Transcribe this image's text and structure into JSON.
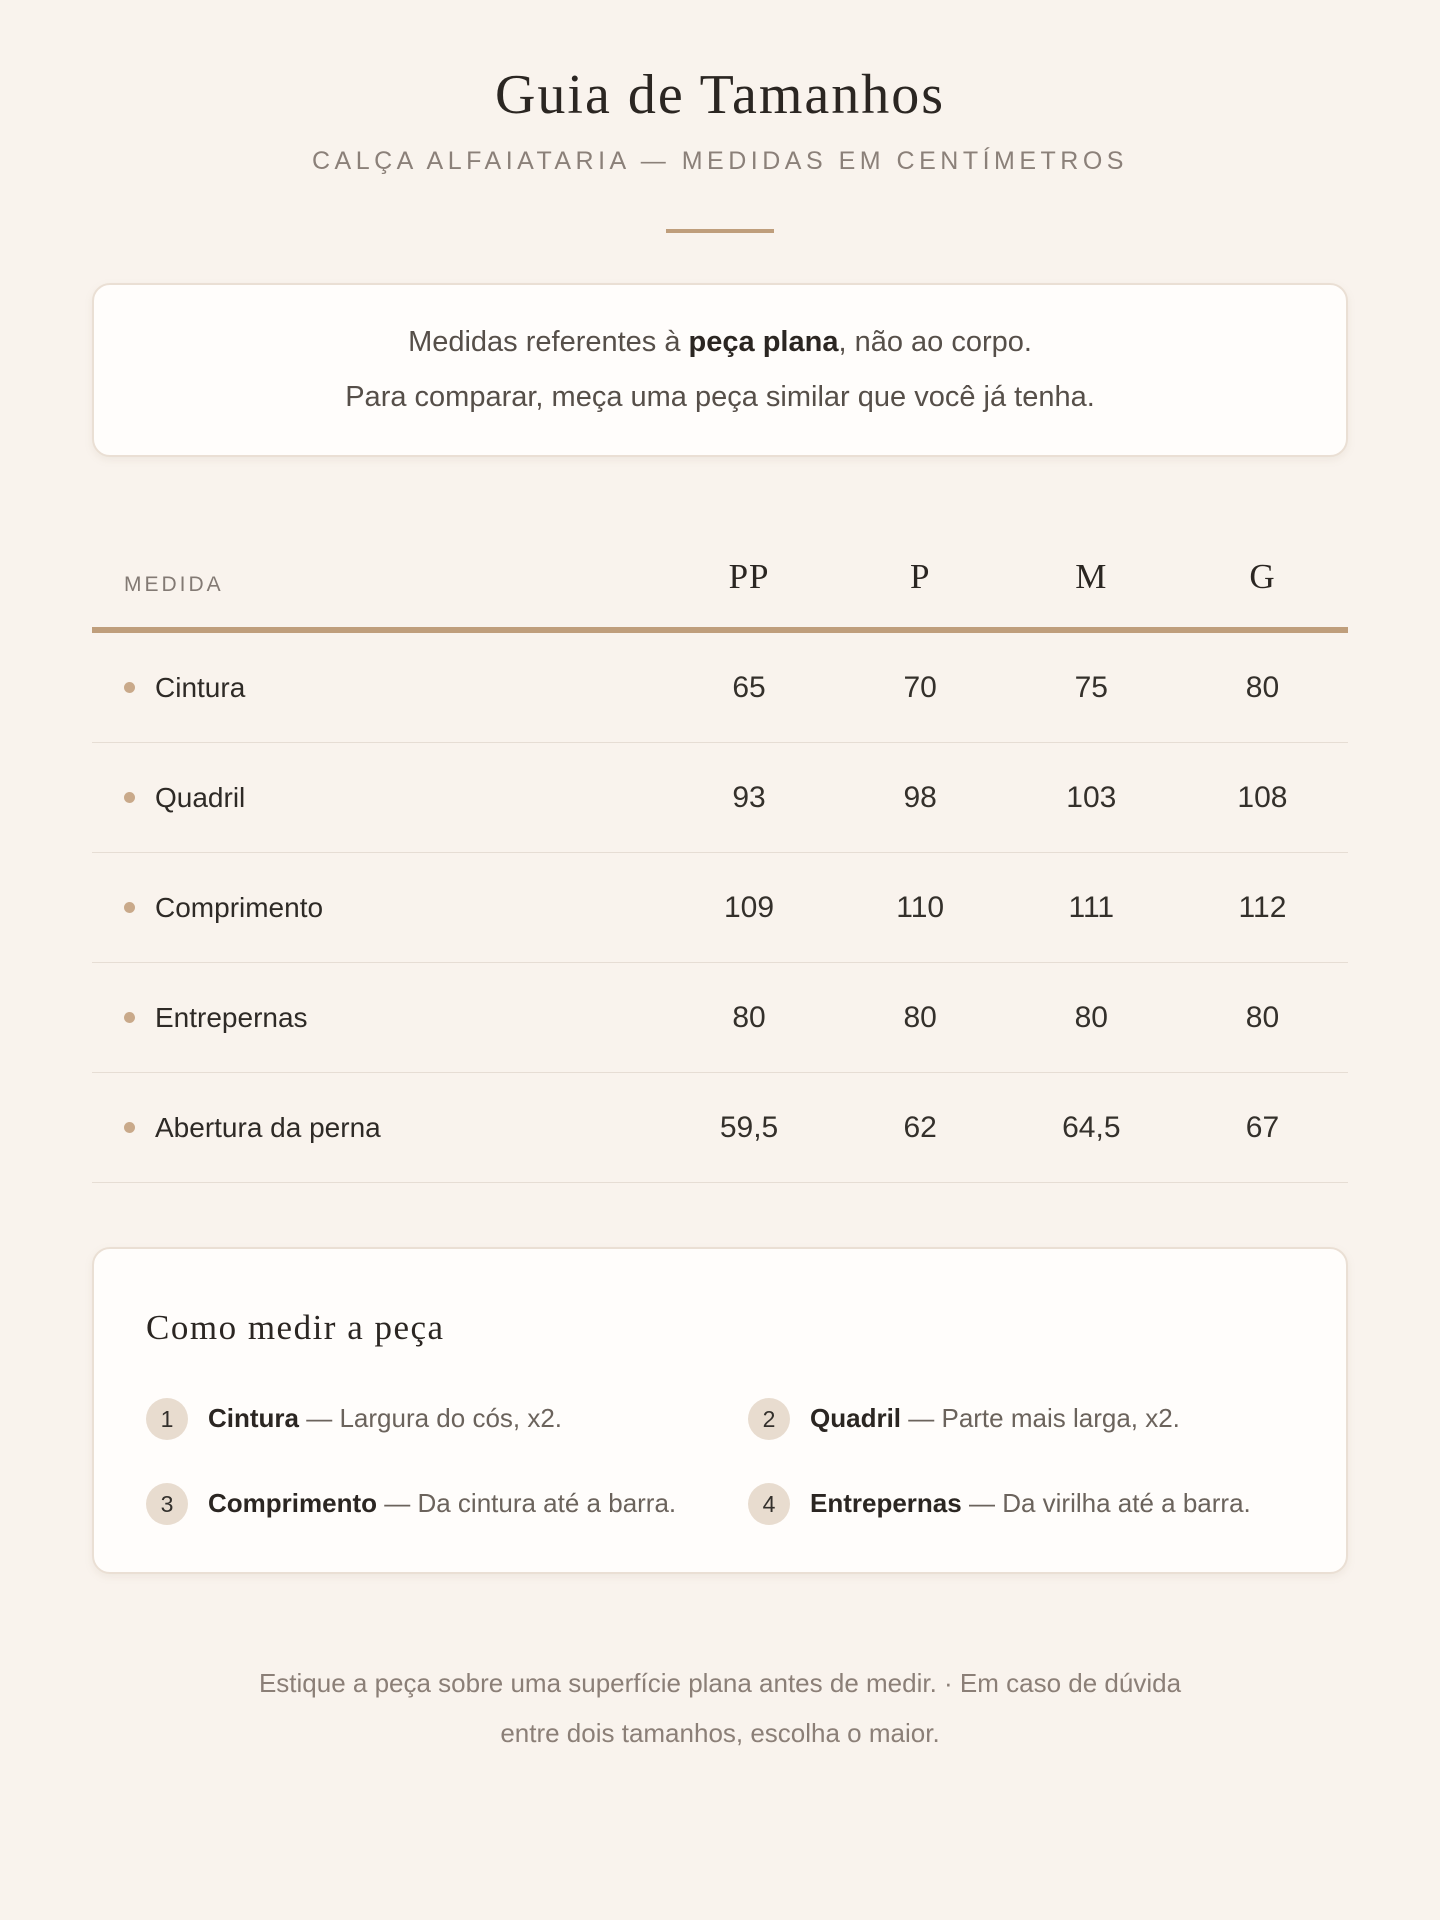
{
  "page": {
    "title": "Guia de Tamanhos",
    "subtitle": "CALÇA ALFAIATARIA — MEDIDAS EM CENTÍMETROS"
  },
  "notice": {
    "line1_prefix": "Medidas referentes à ",
    "line1_bold": "peça plana",
    "line1_suffix": ", não ao corpo.",
    "line2": "Para comparar, meça uma peça similar que você já tenha."
  },
  "table": {
    "label_header": "MEDIDA",
    "size_headers": [
      "PP",
      "P",
      "M",
      "G"
    ],
    "rows": [
      {
        "label": "Cintura",
        "values": [
          "65",
          "70",
          "75",
          "80"
        ]
      },
      {
        "label": "Quadril",
        "values": [
          "93",
          "98",
          "103",
          "108"
        ]
      },
      {
        "label": "Comprimento",
        "values": [
          "109",
          "110",
          "111",
          "112"
        ]
      },
      {
        "label": "Entrepernas",
        "values": [
          "80",
          "80",
          "80",
          "80"
        ]
      },
      {
        "label": "Abertura da perna",
        "values": [
          "59,5",
          "62",
          "64,5",
          "67"
        ]
      }
    ]
  },
  "how_to": {
    "title": "Como medir a peça",
    "items": [
      {
        "number": "1",
        "label": "Cintura",
        "text": "— Largura do cós, x2."
      },
      {
        "number": "2",
        "label": "Quadril",
        "text": "— Parte mais larga, x2."
      },
      {
        "number": "3",
        "label": "Comprimento",
        "text": "— Da cintura até a barra."
      },
      {
        "number": "4",
        "label": "Entrepernas",
        "text": "— Da virilha até a barra."
      }
    ]
  },
  "footer": {
    "line1": "Estique a peça sobre uma superfície plana antes de medir.  ·  Em caso de dúvida",
    "line2": "entre dois tamanhos, escolha o maior."
  },
  "colors": {
    "background": "#f9f3ed",
    "accent_tan": "#bf9e7c",
    "card_background": "#fffdfb",
    "card_border": "#eadfd4",
    "badge_background": "#e8dccf",
    "bullet": "#c9a98a",
    "text_dark": "#2b2622",
    "text_gray": "#6b635c",
    "text_muted": "#8b8079"
  }
}
